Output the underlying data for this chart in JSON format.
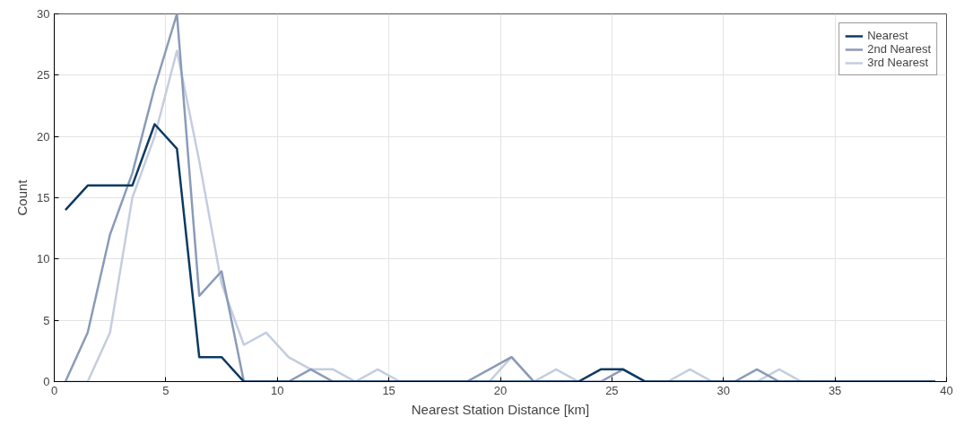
{
  "chart_data": {
    "type": "line",
    "xlabel": "Nearest Station Distance [km]",
    "ylabel": "Count",
    "x": [
      0.5,
      1.5,
      2.5,
      3.5,
      4.5,
      5.5,
      6.5,
      7.5,
      8.5,
      9.5,
      10.5,
      11.5,
      12.5,
      13.5,
      14.5,
      15.5,
      16.5,
      17.5,
      18.5,
      19.5,
      20.5,
      21.5,
      22.5,
      23.5,
      24.5,
      25.5,
      26.5,
      27.5,
      28.5,
      29.5,
      30.5,
      31.5,
      32.5,
      33.5,
      34.5,
      35.5,
      36.5,
      37.5,
      38.5,
      39.5
    ],
    "series": [
      {
        "name": "Nearest",
        "color": "#0d3a63",
        "values": [
          14,
          16,
          16,
          16,
          21,
          19,
          2,
          2,
          0,
          0,
          0,
          0,
          0,
          0,
          0,
          0,
          0,
          0,
          0,
          0,
          0,
          0,
          0,
          0,
          1,
          1,
          0,
          0,
          0,
          0,
          0,
          0,
          0,
          0,
          0,
          0,
          0,
          0,
          0,
          0
        ]
      },
      {
        "name": "2nd Nearest",
        "color": "#8a9bb8",
        "values": [
          0,
          4,
          12,
          17,
          24,
          30,
          7,
          9,
          0,
          0,
          0,
          1,
          0,
          0,
          0,
          0,
          0,
          0,
          0,
          1,
          2,
          0,
          0,
          0,
          0,
          1,
          0,
          0,
          0,
          0,
          0,
          1,
          0,
          0,
          0,
          0,
          0,
          0,
          0,
          0
        ]
      },
      {
        "name": "3rd Nearest",
        "color": "#c4cde0",
        "values": [
          0,
          0,
          4,
          15,
          20,
          27,
          18,
          8,
          3,
          4,
          2,
          1,
          1,
          0,
          1,
          0,
          0,
          0,
          0,
          0,
          2,
          0,
          1,
          0,
          0,
          0,
          0,
          0,
          1,
          0,
          0,
          0,
          1,
          0,
          0,
          0,
          0,
          0,
          0,
          0
        ]
      }
    ],
    "xlim": [
      0,
      40
    ],
    "ylim": [
      0,
      30
    ],
    "xticks": [
      0,
      5,
      10,
      15,
      20,
      25,
      30,
      35,
      40
    ],
    "yticks": [
      0,
      5,
      10,
      15,
      20,
      25,
      30
    ],
    "grid": true,
    "legend": "top right"
  }
}
